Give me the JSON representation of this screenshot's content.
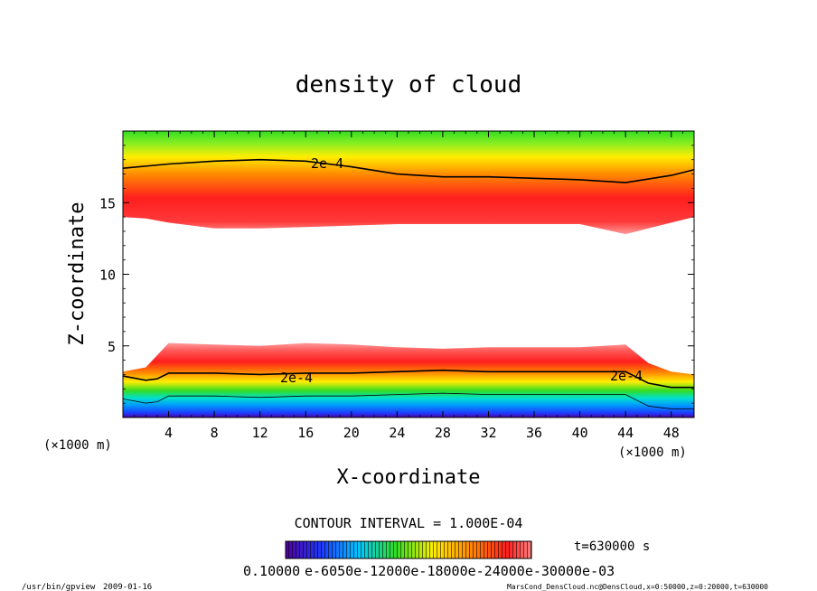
{
  "chart_data": {
    "type": "heatmap",
    "title": "density of cloud",
    "xlabel": "X-coordinate",
    "ylabel": "Z-coordinate",
    "x_unit": "(×1000 m)",
    "z_unit": "(×1000 m)",
    "xlim": [
      0,
      50
    ],
    "ylim": [
      0,
      20
    ],
    "x_ticks": [
      4,
      8,
      12,
      16,
      20,
      24,
      28,
      32,
      36,
      40,
      44,
      48
    ],
    "y_ticks": [
      5,
      10,
      15
    ],
    "contour_interval_text": "CONTOUR INTERVAL = 1.000E-04",
    "contour_label": "2e-4",
    "contour_2e4_upper_x": [
      0,
      4,
      8,
      12,
      16,
      20,
      24,
      28,
      32,
      36,
      40,
      44,
      48,
      50
    ],
    "contour_2e4_upper_z": [
      17.4,
      17.7,
      17.9,
      18.0,
      17.9,
      17.5,
      17.0,
      16.8,
      16.8,
      16.7,
      16.6,
      16.4,
      16.9,
      17.3
    ],
    "cloud_upper_base_x": [
      0,
      2,
      4,
      8,
      12,
      16,
      20,
      24,
      28,
      32,
      36,
      40,
      44,
      46,
      48,
      50
    ],
    "cloud_upper_base_z": [
      14.0,
      13.9,
      13.6,
      13.2,
      13.2,
      13.3,
      13.4,
      13.5,
      13.5,
      13.5,
      13.5,
      13.5,
      12.8,
      13.2,
      13.6,
      14.0
    ],
    "cloud_lower_top_x": [
      0,
      2,
      4,
      8,
      12,
      16,
      20,
      24,
      28,
      32,
      36,
      40,
      44,
      46,
      48,
      50
    ],
    "cloud_lower_top_z": [
      3.2,
      3.5,
      5.2,
      5.1,
      5.0,
      5.2,
      5.1,
      4.9,
      4.8,
      4.9,
      4.9,
      4.9,
      5.1,
      3.8,
      3.2,
      3.0
    ],
    "contour_2e4_lower_x": [
      0,
      2,
      3,
      4,
      8,
      12,
      16,
      20,
      24,
      28,
      32,
      36,
      40,
      44,
      46,
      48,
      50
    ],
    "contour_2e4_lower_z": [
      2.9,
      2.6,
      2.7,
      3.1,
      3.1,
      3.0,
      3.1,
      3.1,
      3.2,
      3.3,
      3.2,
      3.2,
      3.2,
      3.2,
      2.4,
      2.1,
      2.1
    ],
    "colorbar_min_label": "0.10000",
    "colorbar_label_overlap": "e-6050e-12000e-18000e-24000e-30000e-03",
    "colorbar_values": [
      0.0001,
      0.0002,
      0.0003
    ],
    "colors": {
      "low": "#5000a0",
      "blue": "#1e3cff",
      "cyan": "#00c8ff",
      "green": "#33dd22",
      "yellow": "#ffee00",
      "red": "#ff1e1e",
      "pink": "#ff8080"
    }
  },
  "footer": {
    "time": "t=630000 s",
    "program": "/usr/bin/gpview",
    "date": "2009-01-16",
    "source": "MarsCond_DensCloud.nc@DensCloud,x=0:50000,z=0:20000,t=630000"
  }
}
